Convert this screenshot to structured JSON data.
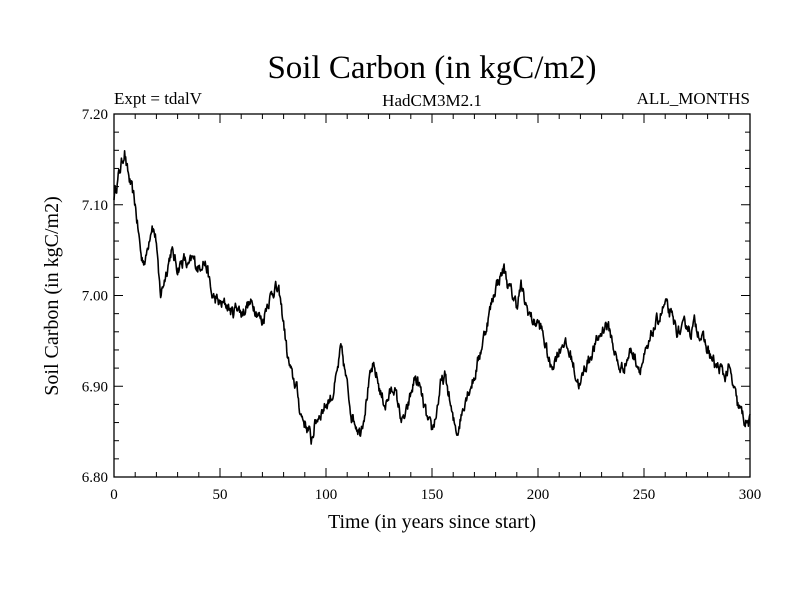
{
  "chart_data": {
    "type": "line",
    "title": "Soil Carbon (in kgC/m2)",
    "subtitle_left": "Expt = tdalV",
    "subtitle_center": "HadCM3M2.1",
    "subtitle_right": "ALL_MONTHS",
    "xlabel": "Time (in years since start)",
    "ylabel": "Soil Carbon (in kgC/m2)",
    "xlim": [
      0,
      300
    ],
    "ylim": [
      6.8,
      7.2
    ],
    "x_ticks": [
      0,
      50,
      100,
      150,
      200,
      250,
      300
    ],
    "x_tick_labels": [
      "0",
      "50",
      "100",
      "150",
      "200",
      "250",
      "300"
    ],
    "y_ticks": [
      6.8,
      6.9,
      7.0,
      7.1,
      7.2
    ],
    "y_tick_labels": [
      "6.80",
      "6.90",
      "7.00",
      "7.10",
      "7.20"
    ],
    "line_color": "#000000",
    "series": [
      {
        "name": "Soil Carbon",
        "x": [
          0,
          2,
          4,
          5,
          6,
          8,
          10,
          12,
          13,
          15,
          17,
          18,
          20,
          21,
          22,
          25,
          27,
          30,
          33,
          35,
          37,
          40,
          42,
          44,
          46,
          50,
          53,
          56,
          58,
          60,
          63,
          66,
          68,
          70,
          72,
          74,
          76,
          78,
          80,
          82,
          84,
          86,
          88,
          90,
          92,
          93,
          95,
          97,
          100,
          103,
          105,
          107,
          108,
          110,
          112,
          114,
          116,
          118,
          120,
          122,
          124,
          126,
          128,
          130,
          132,
          134,
          136,
          138,
          140,
          142,
          144,
          146,
          148,
          150,
          152,
          154,
          156,
          158,
          160,
          162,
          164,
          166,
          168,
          170,
          172,
          174,
          176,
          178,
          180,
          182,
          184,
          186,
          188,
          190,
          192,
          194,
          196,
          198,
          200,
          202,
          204,
          206,
          208,
          210,
          212,
          214,
          216,
          218,
          220,
          222,
          224,
          226,
          228,
          230,
          232,
          234,
          236,
          238,
          240,
          242,
          244,
          246,
          248,
          250,
          252,
          254,
          256,
          258,
          260,
          262,
          264,
          266,
          268,
          270,
          272,
          274,
          276,
          278,
          280,
          282,
          284,
          286,
          288,
          290,
          292,
          294,
          296,
          298,
          300
        ],
        "y": [
          7.11,
          7.13,
          7.15,
          7.16,
          7.14,
          7.12,
          7.1,
          7.06,
          7.04,
          7.04,
          7.07,
          7.08,
          7.06,
          7.02,
          7.0,
          7.03,
          7.05,
          7.03,
          7.04,
          7.03,
          7.04,
          7.03,
          7.04,
          7.03,
          7.0,
          6.99,
          6.99,
          6.98,
          6.99,
          6.98,
          6.99,
          6.99,
          6.98,
          6.97,
          6.99,
          7.0,
          7.01,
          7.0,
          6.97,
          6.93,
          6.91,
          6.9,
          6.87,
          6.86,
          6.85,
          6.84,
          6.86,
          6.87,
          6.88,
          6.89,
          6.91,
          6.94,
          6.93,
          6.9,
          6.87,
          6.86,
          6.85,
          6.87,
          6.9,
          6.92,
          6.91,
          6.89,
          6.88,
          6.89,
          6.9,
          6.88,
          6.86,
          6.87,
          6.89,
          6.91,
          6.9,
          6.88,
          6.86,
          6.85,
          6.87,
          6.9,
          6.91,
          6.89,
          6.86,
          6.85,
          6.87,
          6.89,
          6.9,
          6.91,
          6.93,
          6.95,
          6.97,
          6.99,
          7.01,
          7.02,
          7.03,
          7.01,
          7.0,
          6.99,
          7.01,
          6.99,
          6.98,
          6.97,
          6.97,
          6.96,
          6.94,
          6.92,
          6.93,
          6.94,
          6.95,
          6.94,
          6.93,
          6.91,
          6.9,
          6.92,
          6.93,
          6.94,
          6.95,
          6.96,
          6.97,
          6.96,
          6.94,
          6.92,
          6.92,
          6.93,
          6.94,
          6.93,
          6.92,
          6.93,
          6.94,
          6.96,
          6.97,
          6.98,
          6.99,
          6.98,
          6.97,
          6.96,
          6.96,
          6.97,
          6.96,
          6.97,
          6.96,
          6.95,
          6.94,
          6.93,
          6.92,
          6.92,
          6.91,
          6.92,
          6.9,
          6.88,
          6.87,
          6.86,
          6.86
        ]
      }
    ]
  }
}
